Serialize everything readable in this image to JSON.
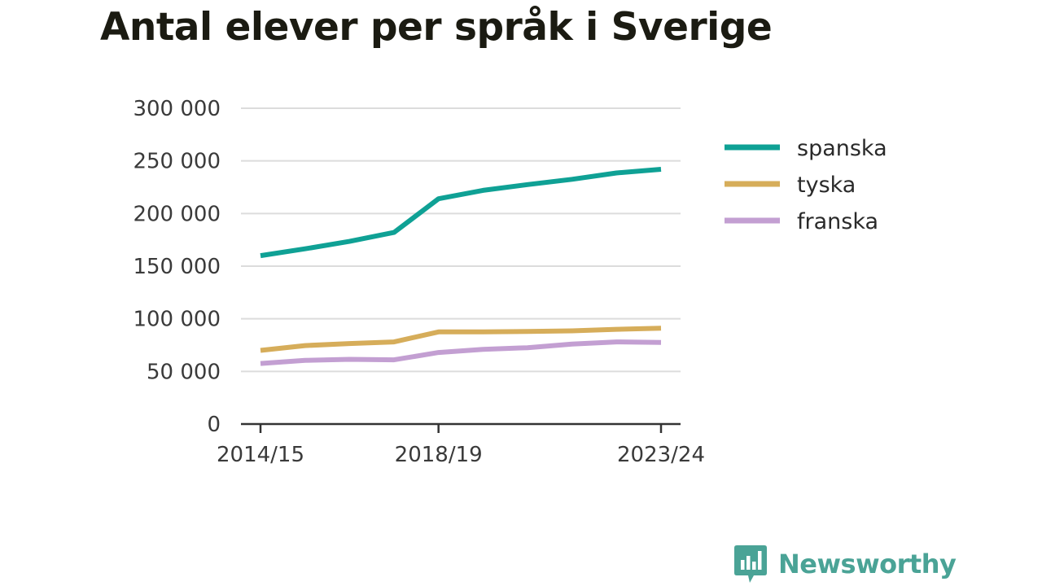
{
  "title": "Antal elever per språk i Sverige",
  "brand": {
    "name": "Newsworthy",
    "icon": "newsworthy-logo-icon",
    "color": "#4aa396"
  },
  "chart_data": {
    "type": "line",
    "title": "Antal elever per språk i Sverige",
    "xlabel": "",
    "ylabel": "",
    "x": [
      "2014/15",
      "2015/16",
      "2016/17",
      "2017/18",
      "2018/19",
      "2019/20",
      "2020/21",
      "2021/22",
      "2022/23",
      "2023/24"
    ],
    "x_ticks": [
      "2014/15",
      "2018/19",
      "2023/24"
    ],
    "ylim": [
      0,
      300000
    ],
    "y_ticks": [
      0,
      50000,
      100000,
      150000,
      200000,
      250000,
      300000
    ],
    "y_tick_labels": [
      "0",
      "50 000",
      "100 000",
      "150 000",
      "200 000",
      "250 000",
      "300 000"
    ],
    "grid": true,
    "legend_position": "right",
    "series": [
      {
        "name": "spanska",
        "color": "#0fa195",
        "values": [
          160000,
          166500,
          173500,
          182000,
          214000,
          222000,
          227500,
          232500,
          238500,
          242000
        ]
      },
      {
        "name": "tyska",
        "color": "#d6ad5a",
        "values": [
          70000,
          74500,
          76500,
          78000,
          87500,
          87500,
          88000,
          88500,
          90000,
          91000
        ]
      },
      {
        "name": "franska",
        "color": "#c39fd2",
        "values": [
          57500,
          60500,
          61500,
          61000,
          68000,
          71000,
          72500,
          76000,
          78000,
          77500
        ]
      }
    ]
  }
}
